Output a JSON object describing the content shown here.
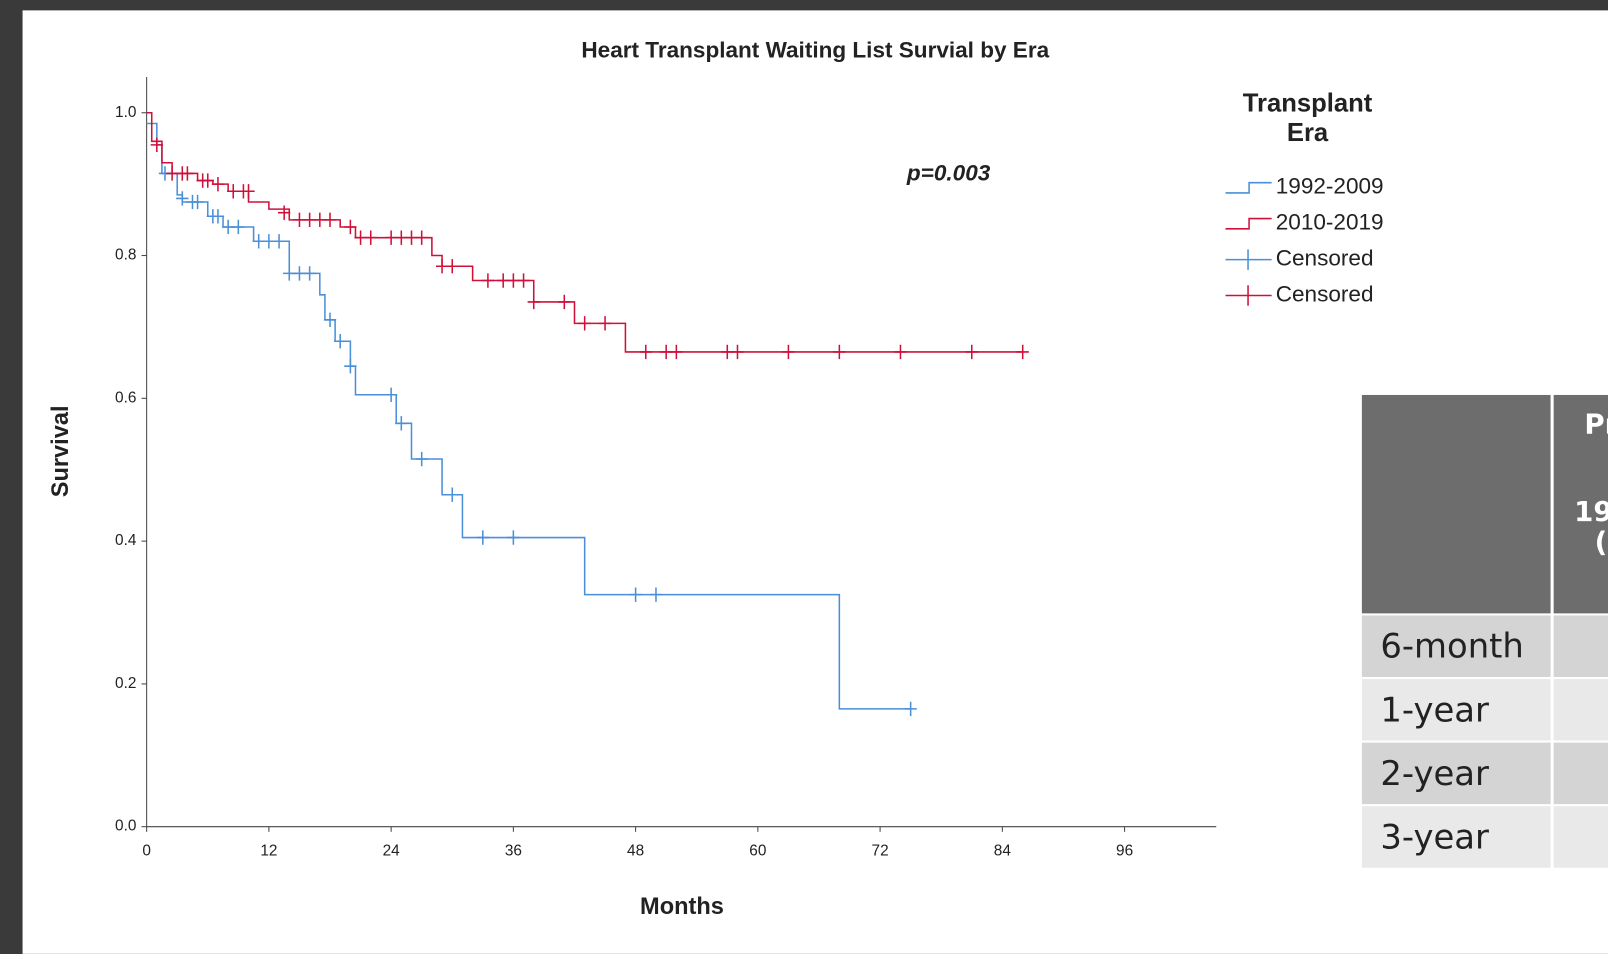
{
  "chart_data": {
    "type": "step",
    "title": "Heart Transplant Waiting List Survial by Era",
    "x_label": "Months",
    "y_label": "Survival",
    "annotation": "p=0.003",
    "legend_title": [
      "Transplant",
      "Era"
    ],
    "xlim": [
      0,
      105
    ],
    "ylim": [
      0,
      1.05
    ],
    "xticks": [
      0,
      12,
      24,
      36,
      48,
      60,
      72,
      84,
      96
    ],
    "yticks": [
      {
        "value": 0,
        "label": "0.0"
      },
      0.2,
      0.4,
      0.6,
      0.8,
      {
        "value": 1,
        "label": "1.0"
      }
    ],
    "series": [
      {
        "name": "1992-2009",
        "color": "#4a8fd8",
        "x": [
          0,
          1,
          1.5,
          3,
          3.5,
          6,
          7.5,
          10.5,
          14,
          17,
          17.5,
          18.5,
          20,
          20.5,
          24.5,
          26,
          29,
          31,
          43,
          68,
          75
        ],
        "values": [
          0.985,
          0.955,
          0.915,
          0.885,
          0.875,
          0.855,
          0.84,
          0.82,
          0.775,
          0.745,
          0.71,
          0.68,
          0.645,
          0.605,
          0.565,
          0.515,
          0.465,
          0.405,
          0.325,
          0.165,
          0.165
        ]
      },
      {
        "name": "2010-2019",
        "color": "#d0103a",
        "x": [
          0,
          0.5,
          1.5,
          2.5,
          5,
          6.5,
          8,
          10,
          12,
          14,
          19,
          20.5,
          28,
          29,
          32,
          38,
          42,
          47,
          86
        ],
        "values": [
          1.0,
          0.96,
          0.93,
          0.915,
          0.905,
          0.9,
          0.89,
          0.875,
          0.865,
          0.85,
          0.84,
          0.825,
          0.8,
          0.785,
          0.765,
          0.735,
          0.705,
          0.665,
          0.665
        ]
      }
    ],
    "censored": [
      {
        "name": "Censored",
        "color": "#4a8fd8",
        "x": [
          1.8,
          3.5,
          4.5,
          5,
          6.5,
          7,
          8,
          9,
          11,
          12,
          13,
          14,
          15,
          16,
          18,
          19,
          20,
          24,
          25,
          27,
          30,
          33,
          36,
          48,
          50,
          75
        ],
        "values": [
          0.915,
          0.88,
          0.875,
          0.875,
          0.855,
          0.855,
          0.84,
          0.84,
          0.82,
          0.82,
          0.82,
          0.775,
          0.775,
          0.775,
          0.71,
          0.68,
          0.645,
          0.605,
          0.565,
          0.515,
          0.465,
          0.405,
          0.405,
          0.325,
          0.325,
          0.165
        ]
      },
      {
        "name": "Censored",
        "color": "#d0103a",
        "x": [
          1,
          2.5,
          3.5,
          4,
          5.5,
          6,
          7,
          8.5,
          9.5,
          10,
          13.5,
          15,
          16,
          17,
          18,
          20,
          21,
          22,
          24,
          25,
          26,
          27,
          29,
          30,
          33.5,
          35,
          36,
          37,
          38,
          41,
          43,
          45,
          49,
          51,
          52,
          57,
          58,
          63,
          68,
          74,
          81,
          86
        ],
        "values": [
          0.955,
          0.915,
          0.915,
          0.915,
          0.905,
          0.905,
          0.9,
          0.89,
          0.89,
          0.89,
          0.86,
          0.85,
          0.85,
          0.85,
          0.85,
          0.84,
          0.825,
          0.825,
          0.825,
          0.825,
          0.825,
          0.825,
          0.785,
          0.785,
          0.765,
          0.765,
          0.765,
          0.765,
          0.735,
          0.735,
          0.705,
          0.705,
          0.665,
          0.665,
          0.665,
          0.665,
          0.665,
          0.665,
          0.665,
          0.665,
          0.665,
          0.665
        ]
      }
    ]
  },
  "table": {
    "header": [
      "Pr",
      "19",
      "("
    ],
    "rows": [
      "6-month",
      "1-year",
      "2-year",
      "3-year"
    ]
  }
}
